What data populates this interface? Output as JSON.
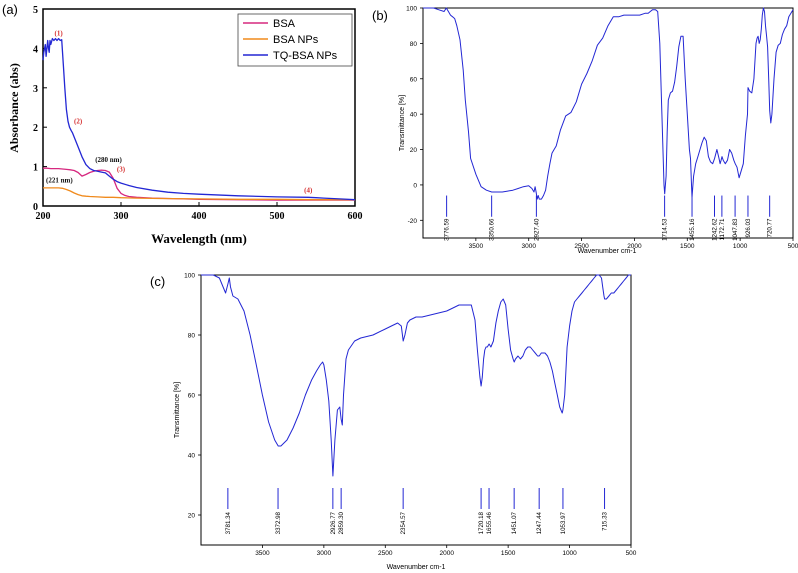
{
  "chart_data": [
    {
      "panel": "(a)",
      "type": "line",
      "title": "",
      "xlabel": "Wavelength (nm)",
      "ylabel": "Absorbance (abs)",
      "xlim": [
        200,
        600
      ],
      "ylim": [
        0,
        5
      ],
      "xticks": [
        200,
        300,
        400,
        500,
        600
      ],
      "yticks": [
        0,
        1,
        2,
        3,
        4,
        5
      ],
      "legend": "top-right",
      "series": [
        {
          "name": "BSA",
          "color": "#d6287f",
          "x": [
            200,
            205,
            210,
            215,
            220,
            225,
            230,
            235,
            240,
            245,
            250,
            255,
            260,
            265,
            270,
            275,
            280,
            285,
            290,
            295,
            300,
            305,
            310,
            320,
            340,
            360,
            380,
            400,
            450,
            500,
            550,
            600
          ],
          "y": [
            0.96,
            0.96,
            0.95,
            0.95,
            0.95,
            0.94,
            0.93,
            0.92,
            0.9,
            0.85,
            0.76,
            0.8,
            0.85,
            0.88,
            0.9,
            0.91,
            0.9,
            0.86,
            0.7,
            0.45,
            0.32,
            0.27,
            0.24,
            0.22,
            0.2,
            0.19,
            0.18,
            0.17,
            0.16,
            0.15,
            0.15,
            0.15
          ]
        },
        {
          "name": "BSA NPs",
          "color": "#f08a1c",
          "x": [
            200,
            205,
            210,
            215,
            220,
            225,
            230,
            235,
            240,
            245,
            250,
            255,
            260,
            270,
            280,
            290,
            300,
            320,
            350,
            400,
            450,
            500,
            550,
            600
          ],
          "y": [
            0.46,
            0.46,
            0.46,
            0.46,
            0.46,
            0.45,
            0.42,
            0.38,
            0.33,
            0.29,
            0.26,
            0.25,
            0.24,
            0.23,
            0.22,
            0.22,
            0.21,
            0.2,
            0.19,
            0.18,
            0.17,
            0.17,
            0.16,
            0.16
          ]
        },
        {
          "name": "TQ-BSA NPs",
          "color": "#2327d4",
          "x": [
            200,
            201,
            202,
            203,
            204,
            205,
            206,
            207,
            208,
            209,
            210,
            212,
            214,
            216,
            218,
            220,
            222,
            224,
            226,
            228,
            230,
            232,
            234,
            236,
            238,
            240,
            245,
            250,
            255,
            260,
            265,
            270,
            275,
            280,
            285,
            290,
            295,
            300,
            310,
            320,
            340,
            360,
            380,
            400,
            450,
            500,
            540,
            550,
            560,
            580,
            600
          ],
          "y": [
            3.7,
            3.9,
            4.0,
            4.1,
            3.8,
            4.0,
            4.2,
            4.0,
            3.9,
            4.2,
            4.1,
            4.25,
            4.2,
            4.25,
            4.2,
            4.25,
            4.2,
            4.22,
            3.6,
            3.0,
            2.45,
            2.15,
            2.0,
            1.92,
            1.85,
            1.75,
            1.5,
            1.25,
            1.05,
            0.95,
            0.9,
            0.88,
            0.86,
            0.84,
            0.76,
            0.68,
            0.62,
            0.58,
            0.52,
            0.47,
            0.4,
            0.35,
            0.32,
            0.3,
            0.26,
            0.23,
            0.22,
            0.21,
            0.2,
            0.18,
            0.16
          ]
        }
      ],
      "annotations": [
        {
          "text": "(1)",
          "x": 220,
          "y": 4.33,
          "color": "#d63030"
        },
        {
          "text": "(2)",
          "x": 245,
          "y": 2.1,
          "color": "#d63030"
        },
        {
          "text": "(280 nm)",
          "x": 284,
          "y": 1.12,
          "color": "#111111"
        },
        {
          "text": "(3)",
          "x": 300,
          "y": 0.88,
          "color": "#d63030"
        },
        {
          "text": "(221 nm)",
          "x": 221,
          "y": 0.6,
          "color": "#111111"
        },
        {
          "text": "(4)",
          "x": 540,
          "y": 0.34,
          "color": "#d63030"
        }
      ]
    },
    {
      "panel": "(b)",
      "type": "line",
      "title": "",
      "xlabel": "Wavenumber cm-1",
      "ylabel": "Transmittance [%]",
      "xlim": [
        4000,
        500
      ],
      "ylim": [
        -30,
        100
      ],
      "xticks": [
        3500,
        3000,
        2500,
        2000,
        1500,
        1000,
        500
      ],
      "yticks": [
        -20,
        0,
        20,
        40,
        60,
        80,
        100
      ],
      "series": [
        {
          "name": "spectrum",
          "color": "#2327d4",
          "x": [
            4000,
            3950,
            3900,
            3850,
            3800,
            3780,
            3760,
            3740,
            3720,
            3700,
            3680,
            3650,
            3620,
            3600,
            3570,
            3550,
            3500,
            3450,
            3400,
            3350,
            3300,
            3250,
            3200,
            3150,
            3100,
            3050,
            3000,
            2970,
            2950,
            2940,
            2930,
            2920,
            2910,
            2900,
            2880,
            2860,
            2840,
            2820,
            2800,
            2780,
            2760,
            2740,
            2700,
            2650,
            2600,
            2550,
            2500,
            2450,
            2400,
            2350,
            2300,
            2250,
            2200,
            2150,
            2100,
            2050,
            2000,
            1950,
            1900,
            1870,
            1850,
            1830,
            1800,
            1780,
            1760,
            1740,
            1720,
            1714,
            1700,
            1690,
            1680,
            1660,
            1640,
            1620,
            1600,
            1580,
            1560,
            1540,
            1520,
            1500,
            1480,
            1470,
            1460,
            1455,
            1440,
            1420,
            1400,
            1380,
            1360,
            1340,
            1320,
            1300,
            1280,
            1260,
            1242,
            1220,
            1200,
            1190,
            1180,
            1172,
            1160,
            1140,
            1120,
            1100,
            1080,
            1060,
            1047,
            1030,
            1010,
            990,
            970,
            950,
            930,
            926,
            910,
            890,
            870,
            850,
            840,
            830,
            820,
            810,
            800,
            790,
            780,
            770,
            760,
            750,
            740,
            730,
            720,
            710,
            700,
            680,
            660,
            640,
            620,
            600,
            580,
            560,
            540,
            520,
            500
          ],
          "y": [
            100,
            100,
            100,
            99,
            98,
            100,
            98,
            96,
            95,
            94,
            90,
            82,
            65,
            48,
            30,
            15,
            6,
            -1,
            -3,
            -4,
            -4,
            -4,
            -3.5,
            -3,
            -2,
            -1,
            -0.5,
            -2,
            -4,
            -1,
            -4,
            -8,
            -6,
            -8,
            -8,
            -6,
            -3,
            5,
            12,
            18,
            20,
            22,
            31,
            39,
            41,
            47,
            57,
            63,
            70,
            79,
            83,
            90,
            95,
            95,
            96,
            96,
            96,
            96,
            97,
            97,
            98,
            99,
            99,
            98,
            80,
            40,
            0,
            -5,
            5,
            30,
            48,
            52,
            53,
            58,
            67,
            78,
            84,
            84,
            60,
            40,
            20,
            15,
            0,
            -7,
            5,
            12,
            16,
            20,
            24,
            27,
            25,
            16,
            13,
            12,
            15,
            20,
            15,
            12,
            14,
            16,
            14,
            12,
            14,
            20,
            18,
            14,
            12,
            10,
            4,
            8,
            12,
            28,
            40,
            55,
            53,
            52,
            60,
            80,
            83,
            84,
            80,
            82,
            88,
            96,
            100,
            98,
            90,
            84,
            78,
            60,
            42,
            35,
            40,
            60,
            75,
            79,
            80,
            85,
            88,
            90,
            95,
            97,
            99
          ]
        }
      ],
      "peak_labels": [
        "3776.59",
        "3350.66",
        "2927.40",
        "1714.53",
        "1455.16",
        "1242.62",
        "1172.71",
        "1047.83",
        "926.03",
        "720.77"
      ],
      "peak_positions": [
        3776.59,
        3350.66,
        2927.4,
        1714.53,
        1455.16,
        1242.62,
        1172.71,
        1047.83,
        926.03,
        720.77
      ]
    },
    {
      "panel": "(c)",
      "type": "line",
      "title": "",
      "xlabel": "Wavenumber cm-1",
      "ylabel": "Transmittance [%]",
      "xlim": [
        4000,
        500
      ],
      "ylim": [
        10,
        100
      ],
      "xticks": [
        3500,
        3000,
        2500,
        2000,
        1500,
        1000,
        500
      ],
      "yticks": [
        20,
        40,
        60,
        80,
        100
      ],
      "series": [
        {
          "name": "spectrum",
          "color": "#2327d4",
          "x": [
            4000,
            3950,
            3900,
            3850,
            3820,
            3800,
            3781,
            3770,
            3760,
            3740,
            3700,
            3650,
            3600,
            3550,
            3500,
            3450,
            3400,
            3372,
            3350,
            3300,
            3250,
            3200,
            3150,
            3100,
            3060,
            3030,
            3010,
            3000,
            2980,
            2960,
            2940,
            2926,
            2910,
            2890,
            2870,
            2860,
            2850,
            2840,
            2820,
            2800,
            2750,
            2700,
            2600,
            2500,
            2450,
            2400,
            2370,
            2354,
            2340,
            2320,
            2300,
            2250,
            2200,
            2100,
            2000,
            1950,
            1900,
            1850,
            1800,
            1770,
            1750,
            1730,
            1720,
            1710,
            1700,
            1690,
            1680,
            1670,
            1655,
            1640,
            1620,
            1600,
            1580,
            1560,
            1540,
            1520,
            1500,
            1480,
            1460,
            1451,
            1440,
            1420,
            1400,
            1380,
            1360,
            1340,
            1320,
            1300,
            1280,
            1260,
            1247,
            1230,
            1200,
            1180,
            1160,
            1140,
            1120,
            1100,
            1080,
            1060,
            1054,
            1040,
            1030,
            1020,
            1000,
            980,
            960,
            940,
            920,
            900,
            880,
            860,
            840,
            820,
            800,
            780,
            760,
            740,
            730,
            720,
            715,
            700,
            680,
            660,
            640,
            620,
            600,
            580,
            560,
            540,
            520,
            500
          ],
          "y": [
            100,
            100,
            100,
            99,
            96,
            94,
            97,
            99,
            96,
            93,
            92,
            88,
            80,
            70,
            60,
            51,
            45,
            43,
            43,
            45,
            49,
            54,
            60,
            65,
            68,
            70,
            71,
            70,
            65,
            58,
            45,
            33,
            45,
            55,
            56,
            52,
            50,
            60,
            72,
            75,
            78,
            79,
            80,
            82,
            83,
            84,
            83,
            78,
            80,
            84,
            85,
            86,
            86,
            87,
            88,
            89,
            90,
            90,
            90,
            85,
            75,
            66,
            63,
            66,
            72,
            75,
            76,
            76,
            77,
            76,
            78,
            84,
            88,
            91,
            92,
            90,
            82,
            75,
            72,
            71,
            72,
            73,
            72,
            73,
            75,
            76,
            76,
            75,
            74,
            73,
            73,
            74,
            74,
            73,
            71,
            68,
            64,
            60,
            56,
            54,
            55,
            60,
            68,
            76,
            83,
            88,
            91,
            92,
            93,
            94,
            95,
            96,
            97,
            98,
            99,
            100,
            100,
            99,
            96,
            93,
            92,
            92,
            93,
            94,
            94,
            95,
            96,
            97,
            98,
            99,
            100,
            100
          ]
        }
      ],
      "peak_labels": [
        "3781.34",
        "3372.98",
        "2926.77",
        "2859.30",
        "2354.57",
        "1720.18",
        "1655.46",
        "1451.07",
        "1247.44",
        "1053.97",
        "715.33"
      ],
      "peak_positions": [
        3781.34,
        3372.98,
        2926.77,
        2859.3,
        2354.57,
        1720.18,
        1655.46,
        1451.07,
        1247.44,
        1053.97,
        715.33
      ]
    }
  ]
}
